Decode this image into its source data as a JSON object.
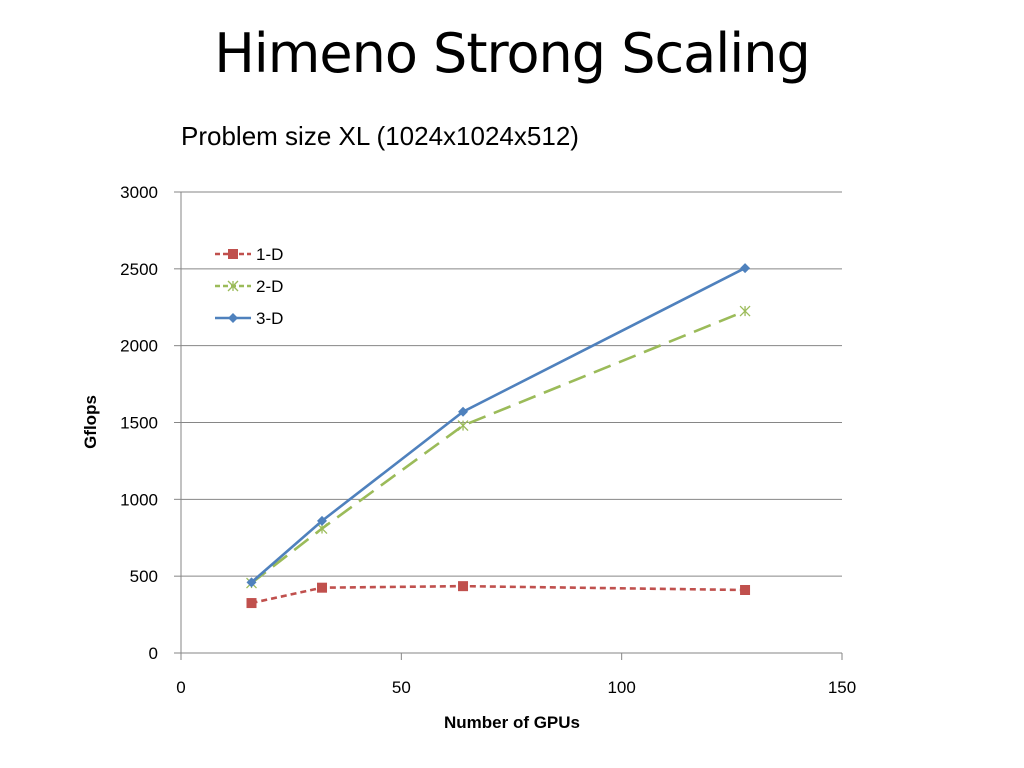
{
  "slide": {
    "title": "Himeno Strong Scaling"
  },
  "chart_data": {
    "type": "line",
    "title": "",
    "subtitle": "Problem size XL (1024x1024x512)",
    "xlabel": "Number of GPUs",
    "ylabel": "Gflops",
    "xlim": [
      0,
      150
    ],
    "ylim": [
      0,
      3000
    ],
    "x_ticks": [
      0,
      50,
      100,
      150
    ],
    "y_ticks": [
      0,
      500,
      1000,
      1500,
      2000,
      2500,
      3000
    ],
    "grid": "horizontal",
    "legend_position": "top-left",
    "series": [
      {
        "name": "1-D",
        "color": "#c0504d",
        "marker": "square",
        "line_style": "dashed",
        "points": [
          [
            16,
            325
          ],
          [
            32,
            425
          ],
          [
            64,
            435
          ],
          [
            128,
            410
          ]
        ]
      },
      {
        "name": "2-D",
        "color": "#9bbb59",
        "marker": "star",
        "line_style": "long-dash",
        "points": [
          [
            16,
            455
          ],
          [
            32,
            810
          ],
          [
            64,
            1480
          ],
          [
            128,
            2225
          ]
        ]
      },
      {
        "name": "3-D",
        "color": "#4f81bd",
        "marker": "diamond",
        "line_style": "solid",
        "points": [
          [
            16,
            460
          ],
          [
            32,
            860
          ],
          [
            64,
            1570
          ],
          [
            128,
            2505
          ]
        ]
      }
    ]
  }
}
